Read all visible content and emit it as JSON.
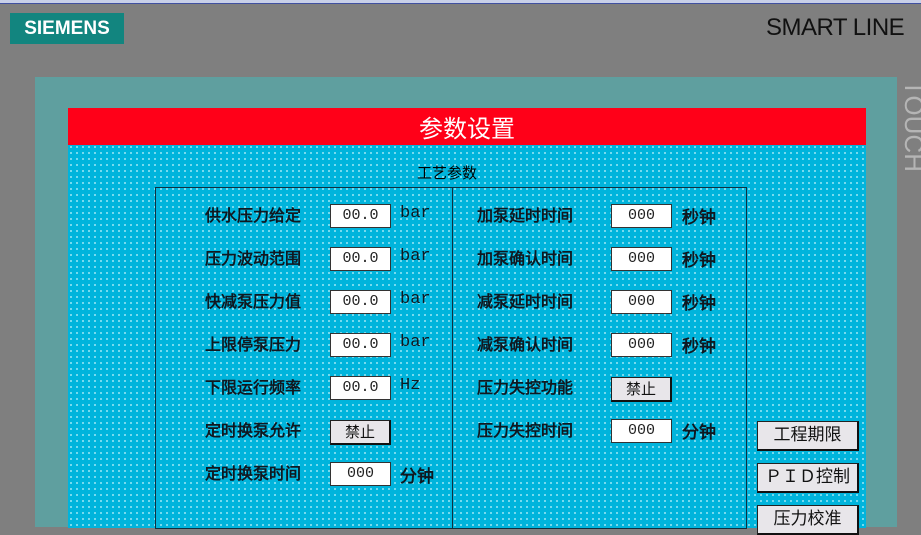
{
  "header": {
    "logo": "SIEMENS",
    "brand": "SMART LINE",
    "side": "TOUCH"
  },
  "screen": {
    "title": "参数设置",
    "subtitle": "工艺参数"
  },
  "left": [
    {
      "label": "供水压力给定",
      "value": "00.0",
      "unit": "bar"
    },
    {
      "label": "压力波动范围",
      "value": "00.0",
      "unit": "bar"
    },
    {
      "label": "快减泵压力值",
      "value": "00.0",
      "unit": "bar"
    },
    {
      "label": "上限停泵压力",
      "value": "00.0",
      "unit": "bar"
    },
    {
      "label": "下限运行频率",
      "value": "00.0",
      "unit": "Hz"
    },
    {
      "label": "定时换泵允许",
      "button": "禁止"
    },
    {
      "label": "定时换泵时间",
      "value": "000",
      "unit": "分钟"
    }
  ],
  "right": [
    {
      "label": "加泵延时时间",
      "value": "000",
      "unit": "秒钟"
    },
    {
      "label": "加泵确认时间",
      "value": "000",
      "unit": "秒钟"
    },
    {
      "label": "减泵延时时间",
      "value": "000",
      "unit": "秒钟"
    },
    {
      "label": "减泵确认时间",
      "value": "000",
      "unit": "秒钟"
    },
    {
      "label": "压力失控功能",
      "button": "禁止"
    },
    {
      "label": "压力失控时间",
      "value": "000",
      "unit": "分钟"
    }
  ],
  "nav": [
    "工程期限",
    "ＰＩＤ控制",
    "压力校准"
  ]
}
